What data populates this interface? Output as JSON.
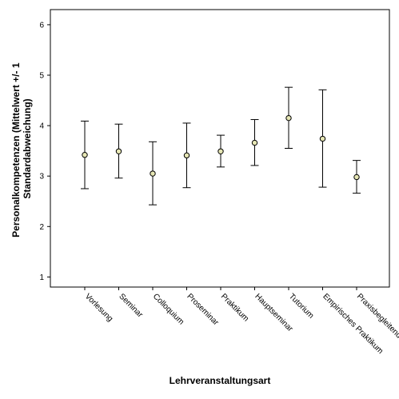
{
  "chart_data": {
    "type": "errorbar",
    "title": "",
    "xlabel": "Lehrveranstaltungsart",
    "ylabel_lines": [
      "Personalkompetenzen (Mittelwert +/- 1",
      "Standardabweichung)"
    ],
    "ylim": [
      0.8,
      6.3
    ],
    "yticks": [
      1,
      2,
      3,
      4,
      5,
      6
    ],
    "grid": false,
    "categories": [
      "Vorlesung",
      "Seminar",
      "Colloquium",
      "Proseminar",
      "Praktikum",
      "Hauptseminar",
      "Tutorium",
      "Empirisches Praktikum",
      "Praxisbegleitende"
    ],
    "mean": [
      3.42,
      3.49,
      3.05,
      3.41,
      3.49,
      3.66,
      4.15,
      3.74,
      2.98
    ],
    "lower": [
      2.75,
      2.96,
      2.43,
      2.77,
      3.18,
      3.21,
      3.55,
      2.78,
      2.66
    ],
    "upper": [
      4.09,
      4.03,
      3.68,
      4.05,
      3.81,
      4.12,
      4.76,
      4.71,
      3.31
    ],
    "marker_color": "#e6e6b4"
  }
}
